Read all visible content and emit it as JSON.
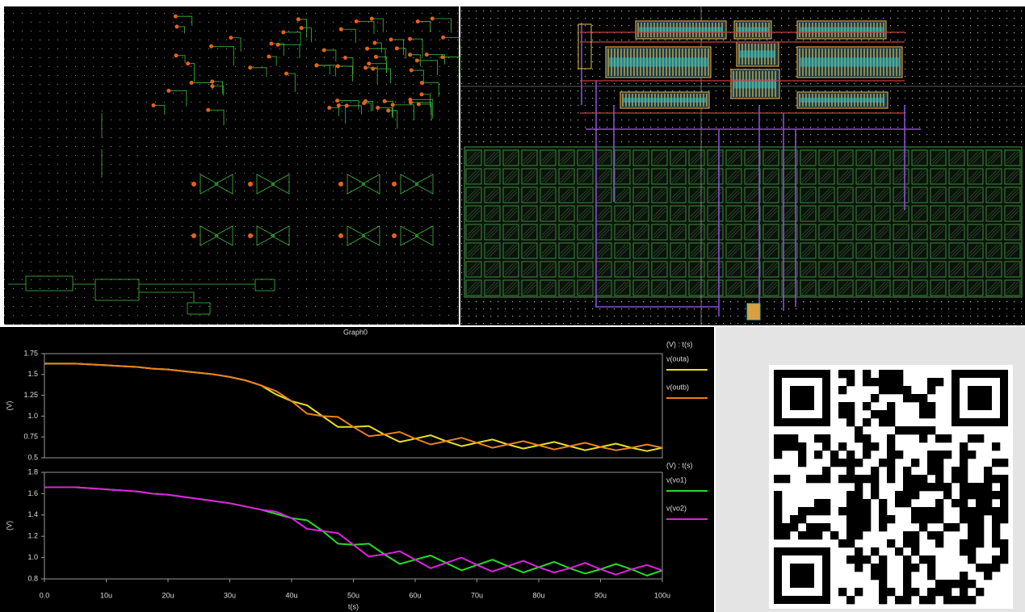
{
  "title": "Graph0",
  "chart_data": [
    {
      "type": "line",
      "ylabel": "(V)",
      "legend_title": "(V) : t(s)",
      "x": [
        0,
        2.5,
        5,
        7.5,
        10,
        12.5,
        15,
        17.5,
        20,
        22.5,
        25,
        27.5,
        30,
        32.5,
        35,
        37.5,
        40,
        42.5,
        45,
        47.5,
        50,
        52.5,
        55,
        57.5,
        60,
        62.5,
        65,
        67.5,
        70,
        72.5,
        75,
        77.5,
        80,
        82.5,
        85,
        87.5,
        90,
        92.5,
        95,
        97.5,
        100
      ],
      "xlim": [
        0,
        100
      ],
      "ylim": [
        0.5,
        1.75
      ],
      "yticks": [
        0.5,
        0.75,
        {
          "value": 1,
          "label": "1.0"
        },
        1.25,
        1.5,
        1.75
      ],
      "series": [
        {
          "name": "v(outa)",
          "color": "#e8e020",
          "values": [
            1.63,
            1.63,
            1.63,
            1.62,
            1.61,
            1.6,
            1.59,
            1.57,
            1.56,
            1.54,
            1.52,
            1.5,
            1.47,
            1.43,
            1.37,
            1.26,
            1.18,
            1.13,
            1.0,
            0.87,
            0.87,
            0.88,
            0.78,
            0.69,
            0.73,
            0.77,
            0.7,
            0.64,
            0.68,
            0.72,
            0.66,
            0.61,
            0.65,
            0.69,
            0.64,
            0.59,
            0.63,
            0.67,
            0.62,
            0.58,
            0.62
          ]
        },
        {
          "name": "v(outb)",
          "color": "#e8821e",
          "values": [
            1.63,
            1.63,
            1.63,
            1.62,
            1.61,
            1.6,
            1.59,
            1.57,
            1.56,
            1.54,
            1.52,
            1.5,
            1.47,
            1.43,
            1.37,
            1.3,
            1.18,
            1.03,
            1.0,
            0.99,
            0.87,
            0.76,
            0.78,
            0.81,
            0.73,
            0.66,
            0.7,
            0.74,
            0.68,
            0.62,
            0.66,
            0.7,
            0.65,
            0.6,
            0.64,
            0.68,
            0.63,
            0.59,
            0.62,
            0.66,
            0.62
          ]
        }
      ]
    },
    {
      "type": "line",
      "ylabel": "(V)",
      "xlabel": "t(s)",
      "legend_title": "(V) : t(s)",
      "x": [
        0,
        2.5,
        5,
        7.5,
        10,
        12.5,
        15,
        17.5,
        20,
        22.5,
        25,
        27.5,
        30,
        32.5,
        35,
        37.5,
        40,
        42.5,
        45,
        47.5,
        50,
        52.5,
        55,
        57.5,
        60,
        62.5,
        65,
        67.5,
        70,
        72.5,
        75,
        77.5,
        80,
        82.5,
        85,
        87.5,
        90,
        92.5,
        95,
        97.5,
        100
      ],
      "xlim": [
        0,
        100
      ],
      "ylim": [
        0.8,
        1.8
      ],
      "xticks": [
        {
          "value": 0,
          "label": "0.0"
        },
        {
          "value": 10,
          "label": "10u"
        },
        {
          "value": 20,
          "label": "20u"
        },
        {
          "value": 30,
          "label": "30u"
        },
        {
          "value": 40,
          "label": "40u"
        },
        {
          "value": 50,
          "label": "50u"
        },
        {
          "value": 60,
          "label": "60u"
        },
        {
          "value": 70,
          "label": "70u"
        },
        {
          "value": 80,
          "label": "80u"
        },
        {
          "value": 90,
          "label": "90u"
        },
        {
          "value": 100,
          "label": "100u"
        }
      ],
      "yticks": [
        0.8,
        {
          "value": 1,
          "label": "1.0"
        },
        1.2,
        1.4,
        1.6,
        1.8
      ],
      "series": [
        {
          "name": "v(vo1)",
          "color": "#22dd22",
          "values": [
            1.66,
            1.66,
            1.66,
            1.65,
            1.64,
            1.63,
            1.62,
            1.6,
            1.59,
            1.57,
            1.55,
            1.53,
            1.51,
            1.48,
            1.45,
            1.41,
            1.37,
            1.35,
            1.25,
            1.13,
            1.12,
            1.13,
            1.03,
            0.94,
            0.98,
            1.02,
            0.95,
            0.88,
            0.93,
            0.98,
            0.92,
            0.86,
            0.91,
            0.96,
            0.9,
            0.85,
            0.89,
            0.94,
            0.89,
            0.83,
            0.88
          ]
        },
        {
          "name": "v(vo2)",
          "color": "#e020e0",
          "values": [
            1.66,
            1.66,
            1.66,
            1.65,
            1.64,
            1.63,
            1.62,
            1.6,
            1.59,
            1.57,
            1.55,
            1.53,
            1.51,
            1.48,
            1.45,
            1.43,
            1.37,
            1.27,
            1.25,
            1.23,
            1.12,
            1.01,
            1.03,
            1.06,
            0.98,
            0.9,
            0.95,
            1.0,
            0.93,
            0.87,
            0.92,
            0.97,
            0.91,
            0.86,
            0.9,
            0.95,
            0.89,
            0.84,
            0.89,
            0.93,
            0.88
          ]
        }
      ]
    }
  ]
}
